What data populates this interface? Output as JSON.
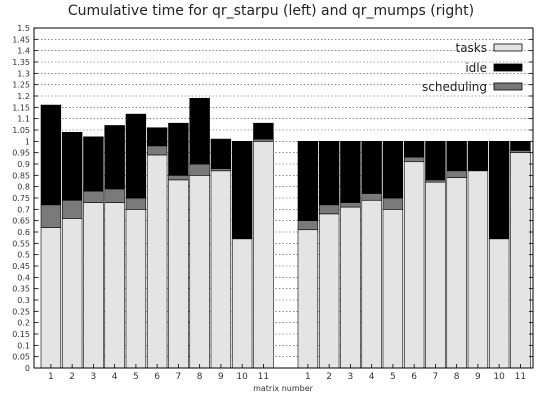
{
  "chart_data": {
    "type": "bar",
    "stacked": true,
    "title": "Cumulative time for qr_starpu (left) and qr_mumps (right)",
    "xlabel": "matrix number",
    "ylabel": "",
    "ylim": [
      0,
      1.5
    ],
    "yticks": [
      "0",
      "0.05",
      "0.1",
      "0.15",
      "0.2",
      "0.25",
      "0.3",
      "0.35",
      "0.4",
      "0.45",
      "0.5",
      "0.55",
      "0.6",
      "0.65",
      "0.7",
      "0.75",
      "0.8",
      "0.85",
      "0.9",
      "0.95",
      "1",
      "1.05",
      "1.1",
      "1.15",
      "1.2",
      "1.25",
      "1.3",
      "1.35",
      "1.4",
      "1.45",
      "1.5"
    ],
    "grid": true,
    "legend_position": "top-right",
    "legend": [
      "tasks",
      "idle",
      "scheduling"
    ],
    "colors": {
      "tasks": "#e4e4e4",
      "idle": "#000000",
      "scheduling": "#7a7a7a"
    },
    "groups": [
      {
        "name": "qr_starpu",
        "categories": [
          "1",
          "2",
          "3",
          "4",
          "5",
          "6",
          "7",
          "8",
          "9",
          "10",
          "11"
        ],
        "series": [
          {
            "name": "tasks",
            "values": [
              0.62,
              0.66,
              0.73,
              0.73,
              0.7,
              0.94,
              0.83,
              0.85,
              0.87,
              0.57,
              1.0
            ]
          },
          {
            "name": "scheduling",
            "values": [
              0.1,
              0.08,
              0.05,
              0.06,
              0.05,
              0.04,
              0.02,
              0.05,
              0.01,
              0.0,
              0.01
            ]
          },
          {
            "name": "idle",
            "values": [
              0.44,
              0.3,
              0.24,
              0.28,
              0.37,
              0.08,
              0.23,
              0.29,
              0.13,
              0.43,
              0.07
            ]
          }
        ]
      },
      {
        "name": "qr_mumps",
        "categories": [
          "1",
          "2",
          "3",
          "4",
          "5",
          "6",
          "7",
          "8",
          "9",
          "10",
          "11"
        ],
        "series": [
          {
            "name": "tasks",
            "values": [
              0.61,
              0.68,
              0.71,
              0.74,
              0.7,
              0.91,
              0.82,
              0.84,
              0.87,
              0.57,
              0.95
            ]
          },
          {
            "name": "scheduling",
            "values": [
              0.04,
              0.04,
              0.02,
              0.03,
              0.05,
              0.02,
              0.01,
              0.03,
              0.0,
              0.0,
              0.01
            ]
          },
          {
            "name": "idle",
            "values": [
              0.35,
              0.28,
              0.27,
              0.23,
              0.25,
              0.07,
              0.17,
              0.13,
              0.13,
              0.43,
              0.04
            ]
          }
        ]
      }
    ]
  }
}
